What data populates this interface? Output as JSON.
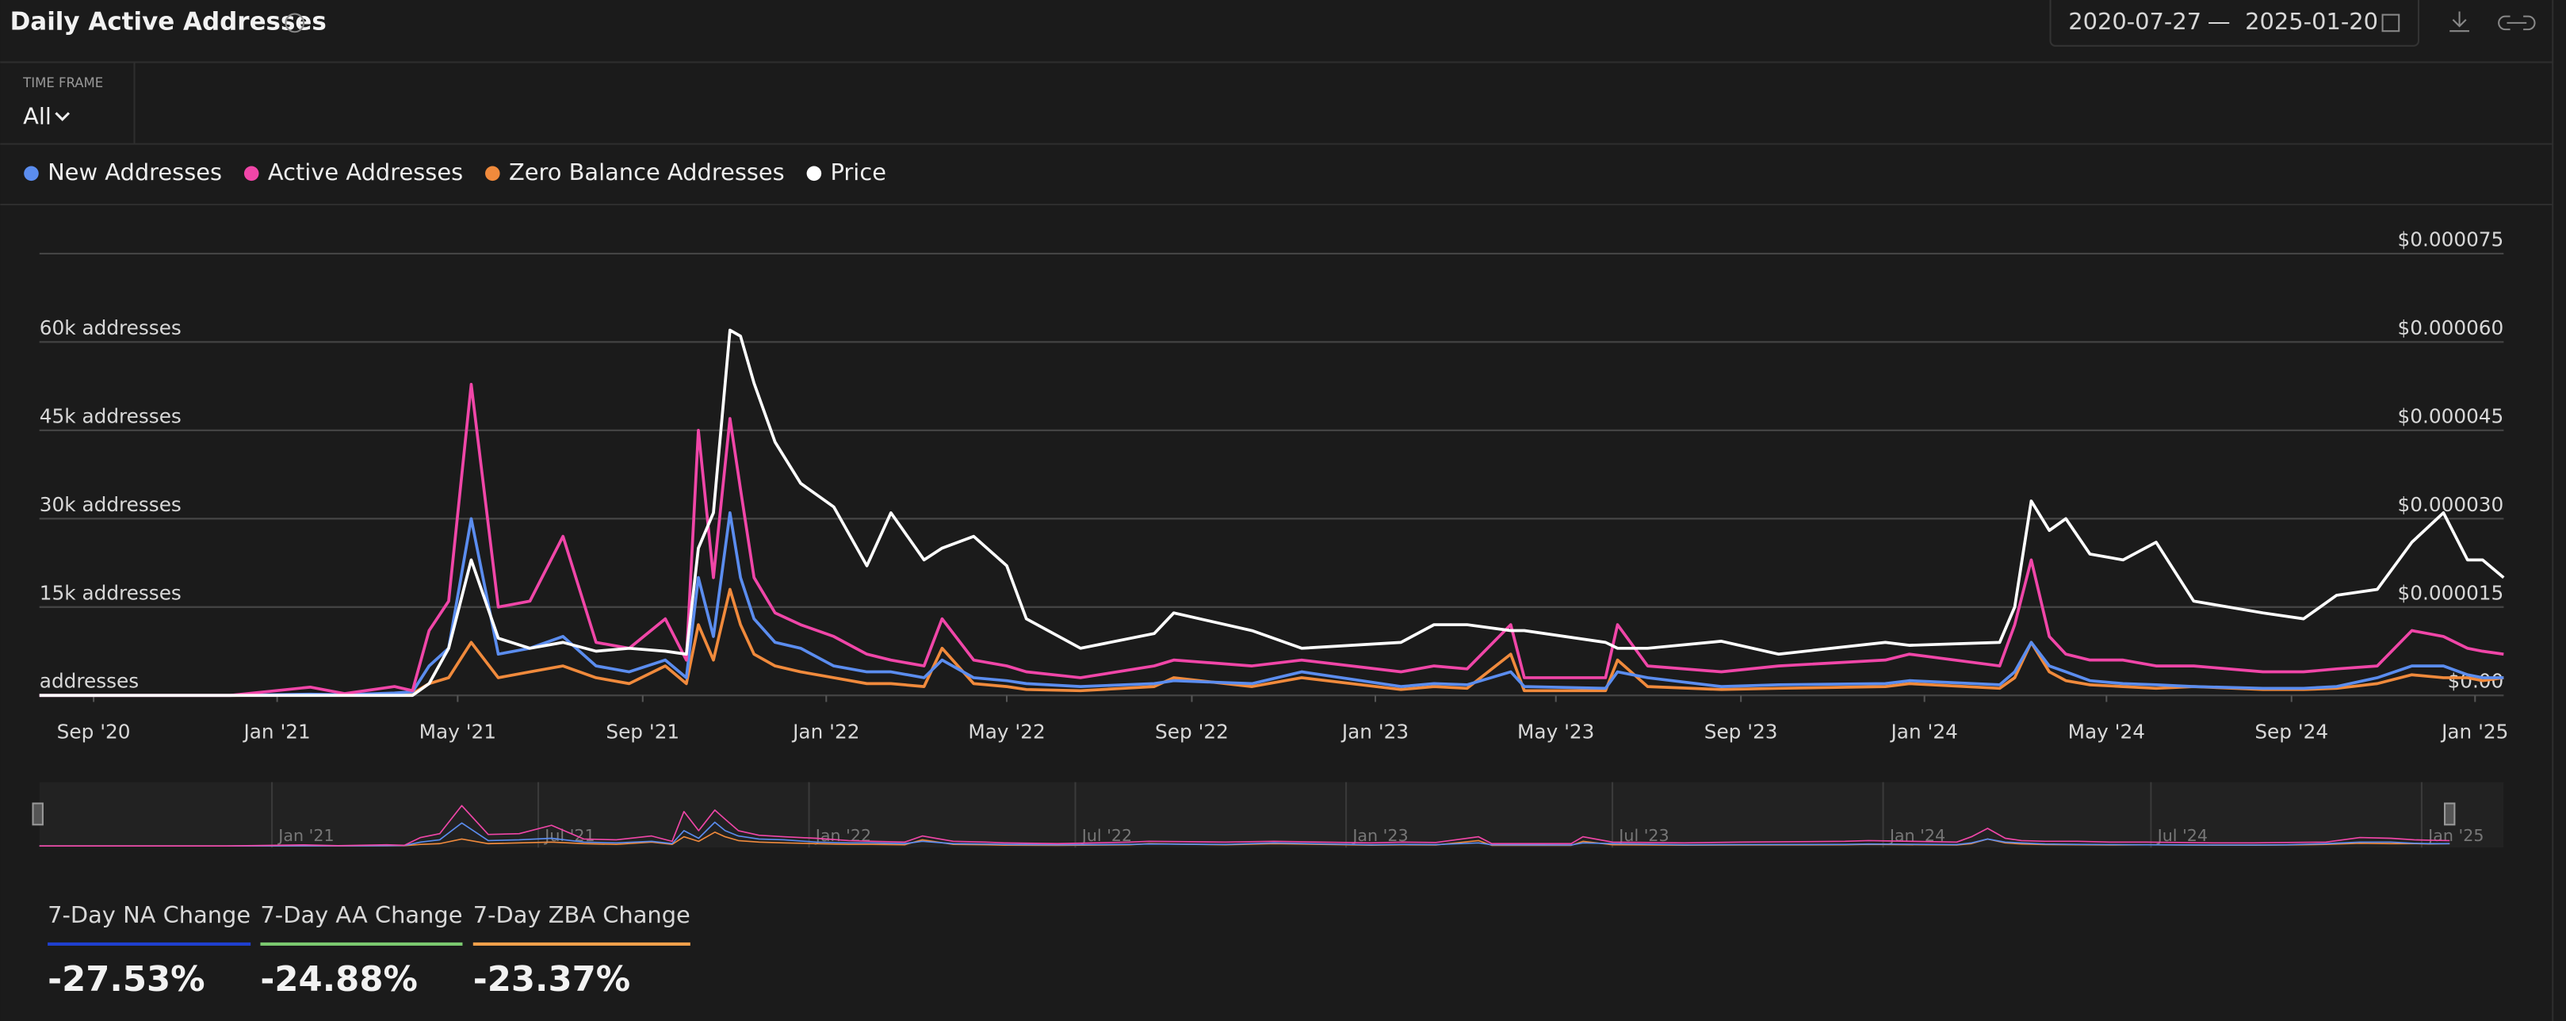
{
  "header": {
    "title": "Daily Active Addresses",
    "date_from": "2020-07-27",
    "separator": "—",
    "date_to": "2025-01-20"
  },
  "time_frame": {
    "label": "TIME FRAME",
    "value": "All"
  },
  "chart_data": {
    "type": "line",
    "x": [
      "2020-07-27",
      "2020-12-01",
      "2021-01-23",
      "2021-02-15",
      "2021-03-20",
      "2021-04-01",
      "2021-04-12",
      "2021-04-25",
      "2021-05-10",
      "2021-05-28",
      "2021-06-18",
      "2021-07-10",
      "2021-08-01",
      "2021-08-23",
      "2021-09-16",
      "2021-09-30",
      "2021-10-08",
      "2021-10-18",
      "2021-10-29",
      "2021-11-05",
      "2021-11-14",
      "2021-11-28",
      "2021-12-15",
      "2022-01-06",
      "2022-01-28",
      "2022-02-13",
      "2022-03-07",
      "2022-03-19",
      "2022-04-09",
      "2022-05-01",
      "2022-05-14",
      "2022-06-19",
      "2022-08-07",
      "2022-08-20",
      "2022-10-11",
      "2022-11-13",
      "2023-01-18",
      "2023-02-09",
      "2023-03-03",
      "2023-04-01",
      "2023-04-10",
      "2023-06-03",
      "2023-06-11",
      "2023-07-01",
      "2023-08-19",
      "2023-09-26",
      "2023-12-06",
      "2023-12-22",
      "2024-02-20",
      "2024-03-01",
      "2024-03-12",
      "2024-03-24",
      "2024-04-04",
      "2024-04-20",
      "2024-05-12",
      "2024-06-03",
      "2024-06-28",
      "2024-08-13",
      "2024-09-09",
      "2024-10-01",
      "2024-10-28",
      "2024-11-20",
      "2024-12-11",
      "2024-12-27",
      "2025-01-06",
      "2025-01-20"
    ],
    "series": [
      {
        "name": "New Addresses",
        "color": "#5b8def",
        "values": [
          0,
          0,
          200,
          100,
          400,
          600,
          5000,
          8000,
          30000,
          7000,
          8000,
          10000,
          5000,
          4000,
          6000,
          3000,
          20000,
          10000,
          31000,
          20000,
          13000,
          9000,
          8000,
          5000,
          4000,
          4000,
          3000,
          6000,
          3000,
          2500,
          2000,
          1500,
          2000,
          2500,
          2000,
          4000,
          1500,
          2000,
          1800,
          4000,
          1500,
          1200,
          4000,
          3000,
          1500,
          1800,
          2000,
          2500,
          1800,
          4000,
          9000,
          5000,
          4000,
          2500,
          2000,
          1800,
          1500,
          1200,
          1200,
          1500,
          3000,
          5000,
          5000,
          3500,
          3000,
          3000
        ]
      },
      {
        "name": "Active Addresses",
        "color": "#f046a8",
        "values": [
          0,
          0,
          1400,
          300,
          1500,
          800,
          11000,
          16000,
          52800,
          15000,
          16000,
          27000,
          9000,
          8000,
          13000,
          6000,
          45000,
          20000,
          47000,
          35000,
          20000,
          14000,
          12000,
          10000,
          7000,
          6000,
          5000,
          13000,
          6000,
          5000,
          4000,
          3000,
          5000,
          6000,
          5000,
          6000,
          4000,
          5000,
          4500,
          12000,
          3000,
          3000,
          12000,
          5000,
          4000,
          5000,
          6000,
          7000,
          5000,
          12000,
          23000,
          10000,
          7000,
          6000,
          6000,
          5000,
          5000,
          4000,
          4000,
          4500,
          5000,
          11000,
          10000,
          8000,
          7500,
          7000
        ]
      },
      {
        "name": "Zero Balance Addresses",
        "color": "#f08a3c",
        "values": [
          0,
          0,
          100,
          50,
          200,
          300,
          2000,
          3000,
          9000,
          3000,
          4000,
          5000,
          3000,
          2000,
          5000,
          2000,
          12000,
          6000,
          18000,
          12000,
          7000,
          5000,
          4000,
          3000,
          2000,
          2000,
          1500,
          8000,
          2000,
          1500,
          1000,
          800,
          1500,
          3000,
          1500,
          3000,
          1000,
          1500,
          1200,
          7000,
          800,
          800,
          6000,
          1500,
          1000,
          1200,
          1500,
          2000,
          1200,
          3000,
          9000,
          4000,
          2500,
          1800,
          1500,
          1200,
          1500,
          1000,
          1000,
          1200,
          2000,
          3500,
          3000,
          3000,
          2500,
          3000
        ]
      },
      {
        "name": "Price",
        "color": "#ffffff",
        "axis": "y2",
        "values": [
          0,
          0,
          0,
          0,
          0,
          0,
          2e-06,
          8e-06,
          2.3e-05,
          9.7e-06,
          8e-06,
          9e-06,
          7.5e-06,
          8e-06,
          7.5e-06,
          7e-06,
          2.5e-05,
          3.1e-05,
          6.2e-05,
          6.1e-05,
          5.3e-05,
          4.3e-05,
          3.6e-05,
          3.2e-05,
          2.2e-05,
          3.1e-05,
          2.3e-05,
          2.5e-05,
          2.7e-05,
          2.2e-05,
          1.3e-05,
          8e-06,
          1.05e-05,
          1.4e-05,
          1.1e-05,
          8e-06,
          9e-06,
          1.2e-05,
          1.2e-05,
          1.1e-05,
          1.1e-05,
          9e-06,
          8e-06,
          8e-06,
          9.2e-06,
          7e-06,
          9e-06,
          8.5e-06,
          9e-06,
          1.5e-05,
          3.3e-05,
          2.8e-05,
          3e-05,
          2.4e-05,
          2.3e-05,
          2.6e-05,
          1.6e-05,
          1.4e-05,
          1.3e-05,
          1.7e-05,
          1.8e-05,
          2.6e-05,
          3.1e-05,
          2.3e-05,
          2.3e-05,
          2e-05
        ]
      }
    ],
    "xlim": [
      "2020-07-27",
      "2025-01-20"
    ],
    "xticks": [
      {
        "value": "2020-09-01",
        "label": "Sep '20"
      },
      {
        "value": "2021-01-01",
        "label": "Jan '21"
      },
      {
        "value": "2021-05-01",
        "label": "May '21"
      },
      {
        "value": "2021-09-01",
        "label": "Sep '21"
      },
      {
        "value": "2022-01-01",
        "label": "Jan '22"
      },
      {
        "value": "2022-05-01",
        "label": "May '22"
      },
      {
        "value": "2022-09-01",
        "label": "Sep '22"
      },
      {
        "value": "2023-01-01",
        "label": "Jan '23"
      },
      {
        "value": "2023-05-01",
        "label": "May '23"
      },
      {
        "value": "2023-09-01",
        "label": "Sep '23"
      },
      {
        "value": "2024-01-01",
        "label": "Jan '24"
      },
      {
        "value": "2024-05-01",
        "label": "May '24"
      },
      {
        "value": "2024-09-01",
        "label": "Sep '24"
      },
      {
        "value": "2025-01-01",
        "label": "Jan '25"
      }
    ],
    "ylim": [
      0,
      75000
    ],
    "yticks": [
      {
        "value": 0,
        "label": "addresses"
      },
      {
        "value": 15000,
        "label": "15k addresses"
      },
      {
        "value": 30000,
        "label": "30k addresses"
      },
      {
        "value": 45000,
        "label": "45k addresses"
      },
      {
        "value": 60000,
        "label": "60k addresses"
      }
    ],
    "y2lim": [
      0,
      7.5e-05
    ],
    "y2ticks": [
      {
        "value": 0,
        "label": "$0.00"
      },
      {
        "value": 1.5e-05,
        "label": "$0.000015"
      },
      {
        "value": 3e-05,
        "label": "$0.000030"
      },
      {
        "value": 4.5e-05,
        "label": "$0.000045"
      },
      {
        "value": 6e-05,
        "label": "$0.000060"
      },
      {
        "value": 7.5e-05,
        "label": "$0.000075"
      }
    ],
    "grid": true,
    "legend": "top-left",
    "navigator": {
      "xticks": [
        {
          "value": "2021-01-01",
          "label": "Jan '21"
        },
        {
          "value": "2021-07-01",
          "label": "Jul '21"
        },
        {
          "value": "2022-01-01",
          "label": "Jan '22"
        },
        {
          "value": "2022-07-01",
          "label": "Jul '22"
        },
        {
          "value": "2023-01-01",
          "label": "Jan '23"
        },
        {
          "value": "2023-07-01",
          "label": "Jul '23"
        },
        {
          "value": "2024-01-01",
          "label": "Jan '24"
        },
        {
          "value": "2024-07-01",
          "label": "Jul '24"
        },
        {
          "value": "2025-01-01",
          "label": "Jan '25"
        }
      ]
    }
  },
  "stats": [
    {
      "label": "7-Day NA Change",
      "value": "-27.53%",
      "color": "#1f3fd0"
    },
    {
      "label": "7-Day AA Change",
      "value": "-24.88%",
      "color": "#7bc96f"
    },
    {
      "label": "7-Day ZBA Change",
      "value": "-23.37%",
      "color": "#f0a04b"
    }
  ]
}
